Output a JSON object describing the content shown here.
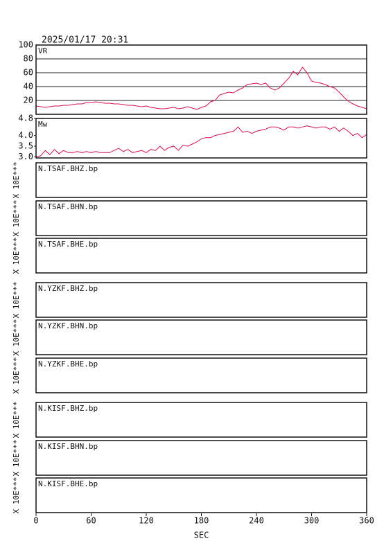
{
  "title": "2025/01/17 20:31",
  "chart_data": [
    {
      "type": "line",
      "ylabel": "VR",
      "xlim": [
        0,
        360
      ],
      "ylim": [
        0,
        100
      ],
      "yticks": [
        20,
        40,
        60,
        80,
        100
      ],
      "grid": true,
      "x": [
        0,
        5,
        10,
        15,
        20,
        25,
        30,
        35,
        40,
        45,
        50,
        55,
        60,
        65,
        70,
        75,
        80,
        85,
        90,
        95,
        100,
        105,
        110,
        115,
        120,
        125,
        130,
        135,
        140,
        145,
        150,
        155,
        160,
        165,
        170,
        175,
        180,
        185,
        190,
        195,
        200,
        205,
        210,
        215,
        220,
        225,
        230,
        235,
        240,
        245,
        250,
        255,
        260,
        265,
        270,
        275,
        280,
        285,
        290,
        295,
        300,
        305,
        310,
        315,
        320,
        325,
        330,
        335,
        340,
        345,
        350,
        355,
        360
      ],
      "series": [
        {
          "color": "#d0104c",
          "values": [
            12,
            11,
            10,
            11,
            12,
            12,
            13,
            13,
            14,
            15,
            15,
            17,
            17,
            18,
            17,
            16,
            16,
            15,
            15,
            14,
            13,
            13,
            12,
            11,
            12,
            10,
            9,
            8,
            8,
            9,
            10,
            8,
            9,
            11,
            9,
            7,
            10,
            12,
            18,
            20,
            28,
            30,
            32,
            31,
            35,
            38,
            43,
            44,
            45,
            43,
            45,
            38,
            35,
            38,
            45,
            52,
            62,
            57,
            68,
            60,
            48,
            46,
            45,
            43,
            40,
            38,
            32,
            25,
            19,
            15,
            12,
            10,
            8
          ]
        }
      ]
    },
    {
      "type": "line",
      "ylabel": "Mw",
      "xlim": [
        0,
        360
      ],
      "ylim": [
        2.95,
        4.8
      ],
      "yticks": [
        {
          "value": 3,
          "label": "3.0"
        },
        3.5,
        {
          "value": 4,
          "label": "4.0"
        },
        4.8
      ],
      "grid": false,
      "x": [
        0,
        5,
        10,
        15,
        20,
        25,
        30,
        35,
        40,
        45,
        50,
        55,
        60,
        65,
        70,
        75,
        80,
        85,
        90,
        95,
        100,
        105,
        110,
        115,
        120,
        125,
        130,
        135,
        140,
        145,
        150,
        155,
        160,
        165,
        170,
        175,
        180,
        185,
        190,
        195,
        200,
        205,
        210,
        215,
        220,
        225,
        230,
        235,
        240,
        245,
        250,
        255,
        260,
        265,
        270,
        275,
        280,
        285,
        290,
        295,
        300,
        305,
        310,
        315,
        320,
        325,
        330,
        335,
        340,
        345,
        350,
        355,
        360
      ],
      "series": [
        {
          "color": "#d0104c",
          "values": [
            3.0,
            3.05,
            3.3,
            3.1,
            3.35,
            3.15,
            3.3,
            3.2,
            3.2,
            3.25,
            3.2,
            3.25,
            3.2,
            3.25,
            3.2,
            3.2,
            3.2,
            3.3,
            3.4,
            3.25,
            3.35,
            3.2,
            3.25,
            3.3,
            3.2,
            3.35,
            3.3,
            3.5,
            3.3,
            3.45,
            3.5,
            3.3,
            3.55,
            3.5,
            3.6,
            3.7,
            3.85,
            3.9,
            3.9,
            4.0,
            4.05,
            4.1,
            4.15,
            4.2,
            4.4,
            4.15,
            4.2,
            4.1,
            4.2,
            4.25,
            4.3,
            4.4,
            4.4,
            4.35,
            4.25,
            4.4,
            4.4,
            4.35,
            4.4,
            4.45,
            4.4,
            4.35,
            4.4,
            4.4,
            4.3,
            4.4,
            4.2,
            4.35,
            4.2,
            4.0,
            4.1,
            3.9,
            4.05
          ]
        }
      ]
    }
  ],
  "waveforms": {
    "xlim": [
      0,
      360
    ],
    "xticks": [
      0,
      60,
      120,
      180,
      240,
      300,
      360
    ],
    "xlabel": "SEC",
    "panels": [
      {
        "label": "N.TSAF.BHZ.bp",
        "ylabel": "X 10E***"
      },
      {
        "label": "N.TSAF.BHN.bp",
        "ylabel": "X 10E***"
      },
      {
        "label": "N.TSAF.BHE.bp",
        "ylabel": "X 10E***"
      },
      {
        "label": "N.YZKF.BHZ.bp",
        "ylabel": "X 10E***"
      },
      {
        "label": "N.YZKF.BHN.bp",
        "ylabel": "X 10E***"
      },
      {
        "label": "N.YZKF.BHE.bp",
        "ylabel": "X 10E***"
      },
      {
        "label": "N.KISF.BHZ.bp",
        "ylabel": "X 10E***"
      },
      {
        "label": "N.KISF.BHN.bp",
        "ylabel": "X 10E***"
      },
      {
        "label": "N.KISF.BHE.bp",
        "ylabel": "X 10E***"
      }
    ]
  }
}
